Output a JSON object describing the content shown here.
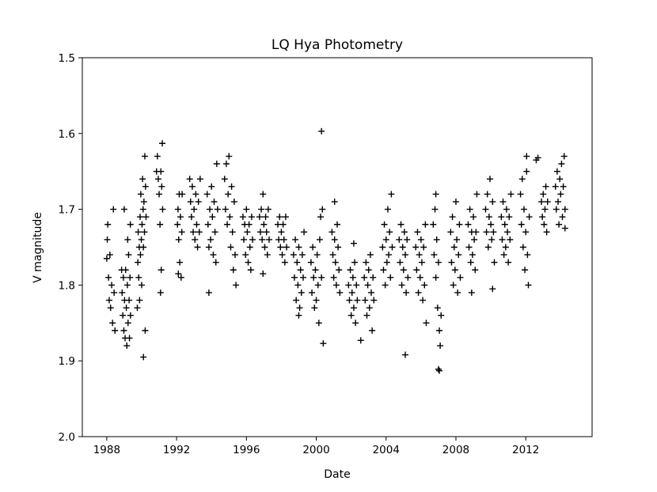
{
  "chart_data": {
    "type": "scatter",
    "title": "LQ Hya Photometry",
    "xlabel": "Date",
    "ylabel": "V magnitude",
    "xlim": [
      1986.6,
      2015.8
    ],
    "ylim": [
      2.0,
      1.5
    ],
    "y_inverted": true,
    "marker": "+",
    "marker_color": "#000000",
    "grid": false,
    "xticks": [
      1988,
      1992,
      1996,
      2000,
      2004,
      2008,
      2012
    ],
    "xtick_labels": [
      "1988",
      "1992",
      "1996",
      "2000",
      "2004",
      "2008",
      "2012"
    ],
    "yticks": [
      1.5,
      1.6,
      1.7,
      1.8,
      1.9,
      2.0
    ],
    "ytick_labels": [
      "1.5",
      "1.6",
      "1.7",
      "1.8",
      "1.9",
      "2.0"
    ],
    "points": [
      [
        1988.0,
        1.765
      ],
      [
        1988.03,
        1.74
      ],
      [
        1988.06,
        1.72
      ],
      [
        1988.1,
        1.79
      ],
      [
        1988.14,
        1.82
      ],
      [
        1988.18,
        1.76
      ],
      [
        1988.22,
        1.83
      ],
      [
        1988.28,
        1.8
      ],
      [
        1988.33,
        1.85
      ],
      [
        1988.38,
        1.7
      ],
      [
        1988.42,
        1.81
      ],
      [
        1988.47,
        1.86
      ],
      [
        1988.85,
        1.78
      ],
      [
        1988.88,
        1.81
      ],
      [
        1988.92,
        1.84
      ],
      [
        1988.95,
        1.79
      ],
      [
        1988.98,
        1.86
      ],
      [
        1989.02,
        1.82
      ],
      [
        1989.05,
        1.87
      ],
      [
        1989.08,
        1.78
      ],
      [
        1989.12,
        1.83
      ],
      [
        1989.15,
        1.88
      ],
      [
        1989.18,
        1.8
      ],
      [
        1989.22,
        1.85
      ],
      [
        1989.25,
        1.76
      ],
      [
        1989.28,
        1.82
      ],
      [
        1989.3,
        1.87
      ],
      [
        1989.33,
        1.79
      ],
      [
        1989.36,
        1.84
      ],
      [
        1989.0,
        1.7
      ],
      [
        1989.2,
        1.74
      ],
      [
        1989.35,
        1.72
      ],
      [
        1989.75,
        1.83
      ],
      [
        1989.78,
        1.77
      ],
      [
        1989.8,
        1.73
      ],
      [
        1989.83,
        1.79
      ],
      [
        1989.86,
        1.75
      ],
      [
        1989.88,
        1.82
      ],
      [
        1989.91,
        1.71
      ],
      [
        1989.93,
        1.76
      ],
      [
        1989.95,
        1.68
      ],
      [
        1989.98,
        1.74
      ],
      [
        1990.0,
        1.8
      ],
      [
        1990.02,
        1.72
      ],
      [
        1990.05,
        1.66
      ],
      [
        1990.08,
        1.7
      ],
      [
        1990.1,
        1.75
      ],
      [
        1990.13,
        1.69
      ],
      [
        1990.16,
        1.73
      ],
      [
        1990.18,
        1.63
      ],
      [
        1990.2,
        1.86
      ],
      [
        1990.1,
        1.895
      ],
      [
        1990.22,
        1.67
      ],
      [
        1990.25,
        1.71
      ],
      [
        1990.85,
        1.65
      ],
      [
        1990.9,
        1.63
      ],
      [
        1990.95,
        1.66
      ],
      [
        1991.0,
        1.68
      ],
      [
        1991.05,
        1.72
      ],
      [
        1991.1,
        1.65
      ],
      [
        1991.15,
        1.67
      ],
      [
        1991.18,
        1.613
      ],
      [
        1991.2,
        1.7
      ],
      [
        1991.12,
        1.78
      ],
      [
        1991.08,
        1.81
      ],
      [
        1992.05,
        1.72
      ],
      [
        1992.08,
        1.7
      ],
      [
        1992.12,
        1.74
      ],
      [
        1992.15,
        1.68
      ],
      [
        1992.18,
        1.77
      ],
      [
        1992.22,
        1.71
      ],
      [
        1992.26,
        1.79
      ],
      [
        1992.3,
        1.73
      ],
      [
        1992.32,
        1.68
      ],
      [
        1992.1,
        1.785
      ],
      [
        1992.75,
        1.66
      ],
      [
        1992.8,
        1.69
      ],
      [
        1992.85,
        1.71
      ],
      [
        1992.9,
        1.67
      ],
      [
        1992.95,
        1.73
      ],
      [
        1993.0,
        1.7
      ],
      [
        1993.05,
        1.74
      ],
      [
        1993.1,
        1.68
      ],
      [
        1993.15,
        1.72
      ],
      [
        1993.2,
        1.75
      ],
      [
        1993.25,
        1.69
      ],
      [
        1993.3,
        1.73
      ],
      [
        1993.35,
        1.66
      ],
      [
        1993.75,
        1.68
      ],
      [
        1993.8,
        1.72
      ],
      [
        1993.85,
        1.75
      ],
      [
        1993.9,
        1.7
      ],
      [
        1993.95,
        1.74
      ],
      [
        1994.0,
        1.67
      ],
      [
        1994.05,
        1.71
      ],
      [
        1994.1,
        1.76
      ],
      [
        1994.15,
        1.69
      ],
      [
        1994.2,
        1.73
      ],
      [
        1994.25,
        1.77
      ],
      [
        1994.3,
        1.64
      ],
      [
        1994.35,
        1.7
      ],
      [
        1993.85,
        1.81
      ],
      [
        1994.75,
        1.66
      ],
      [
        1994.8,
        1.7
      ],
      [
        1994.85,
        1.64
      ],
      [
        1994.9,
        1.72
      ],
      [
        1994.95,
        1.68
      ],
      [
        1995.0,
        1.63
      ],
      [
        1995.05,
        1.71
      ],
      [
        1995.1,
        1.75
      ],
      [
        1995.15,
        1.67
      ],
      [
        1995.2,
        1.73
      ],
      [
        1995.25,
        1.78
      ],
      [
        1995.3,
        1.69
      ],
      [
        1995.35,
        1.76
      ],
      [
        1995.4,
        1.8
      ],
      [
        1995.8,
        1.71
      ],
      [
        1995.85,
        1.74
      ],
      [
        1995.9,
        1.72
      ],
      [
        1995.95,
        1.76
      ],
      [
        1996.0,
        1.7
      ],
      [
        1996.05,
        1.73
      ],
      [
        1996.1,
        1.77
      ],
      [
        1996.15,
        1.72
      ],
      [
        1996.2,
        1.75
      ],
      [
        1996.25,
        1.78
      ],
      [
        1996.3,
        1.71
      ],
      [
        1996.35,
        1.74
      ],
      [
        1996.75,
        1.71
      ],
      [
        1996.8,
        1.73
      ],
      [
        1996.85,
        1.7
      ],
      [
        1996.9,
        1.74
      ],
      [
        1996.95,
        1.68
      ],
      [
        1997.0,
        1.72
      ],
      [
        1997.05,
        1.75
      ],
      [
        1997.1,
        1.71
      ],
      [
        1997.15,
        1.73
      ],
      [
        1997.2,
        1.76
      ],
      [
        1997.25,
        1.7
      ],
      [
        1997.3,
        1.74
      ],
      [
        1996.95,
        1.785
      ],
      [
        1997.8,
        1.72
      ],
      [
        1997.85,
        1.74
      ],
      [
        1997.9,
        1.71
      ],
      [
        1997.95,
        1.75
      ],
      [
        1998.0,
        1.73
      ],
      [
        1998.05,
        1.76
      ],
      [
        1998.1,
        1.72
      ],
      [
        1998.15,
        1.74
      ],
      [
        1998.2,
        1.77
      ],
      [
        1998.25,
        1.71
      ],
      [
        1998.3,
        1.75
      ],
      [
        1998.7,
        1.76
      ],
      [
        1998.75,
        1.79
      ],
      [
        1998.8,
        1.74
      ],
      [
        1998.85,
        1.82
      ],
      [
        1998.9,
        1.77
      ],
      [
        1998.95,
        1.8
      ],
      [
        1999.0,
        1.75
      ],
      [
        1999.05,
        1.83
      ],
      [
        1999.1,
        1.78
      ],
      [
        1999.15,
        1.81
      ],
      [
        1999.2,
        1.76
      ],
      [
        1999.25,
        1.79
      ],
      [
        1999.3,
        1.73
      ],
      [
        1999.0,
        1.84
      ],
      [
        1999.7,
        1.77
      ],
      [
        1999.75,
        1.81
      ],
      [
        1999.8,
        1.75
      ],
      [
        1999.85,
        1.79
      ],
      [
        1999.9,
        1.83
      ],
      [
        1999.95,
        1.78
      ],
      [
        2000.0,
        1.82
      ],
      [
        2000.05,
        1.76
      ],
      [
        2000.1,
        1.8
      ],
      [
        2000.15,
        1.85
      ],
      [
        2000.2,
        1.74
      ],
      [
        2000.25,
        1.71
      ],
      [
        2000.3,
        1.79
      ],
      [
        2000.35,
        1.7
      ],
      [
        2000.3,
        1.597
      ],
      [
        2000.4,
        1.877
      ],
      [
        2000.9,
        1.73
      ],
      [
        2000.95,
        1.76
      ],
      [
        2001.0,
        1.79
      ],
      [
        2001.05,
        1.74
      ],
      [
        2001.1,
        1.77
      ],
      [
        2001.15,
        1.8
      ],
      [
        2001.2,
        1.72
      ],
      [
        2001.25,
        1.75
      ],
      [
        2001.3,
        1.78
      ],
      [
        2001.35,
        1.81
      ],
      [
        2001.05,
        1.69
      ],
      [
        2001.85,
        1.8
      ],
      [
        2001.9,
        1.82
      ],
      [
        2001.95,
        1.78
      ],
      [
        2002.0,
        1.84
      ],
      [
        2002.05,
        1.81
      ],
      [
        2002.1,
        1.79
      ],
      [
        2002.15,
        1.83
      ],
      [
        2002.2,
        1.77
      ],
      [
        2002.25,
        1.85
      ],
      [
        2002.3,
        1.8
      ],
      [
        2002.35,
        1.82
      ],
      [
        2002.15,
        1.745
      ],
      [
        2002.75,
        1.79
      ],
      [
        2002.8,
        1.82
      ],
      [
        2002.85,
        1.77
      ],
      [
        2002.9,
        1.84
      ],
      [
        2002.95,
        1.8
      ],
      [
        2003.0,
        1.78
      ],
      [
        2003.05,
        1.83
      ],
      [
        2003.1,
        1.76
      ],
      [
        2003.15,
        1.81
      ],
      [
        2003.2,
        1.86
      ],
      [
        2003.25,
        1.79
      ],
      [
        2003.3,
        1.82
      ],
      [
        2002.55,
        1.873
      ],
      [
        2003.8,
        1.75
      ],
      [
        2003.85,
        1.78
      ],
      [
        2003.9,
        1.72
      ],
      [
        2003.95,
        1.8
      ],
      [
        2004.0,
        1.74
      ],
      [
        2004.05,
        1.77
      ],
      [
        2004.1,
        1.7
      ],
      [
        2004.15,
        1.76
      ],
      [
        2004.2,
        1.73
      ],
      [
        2004.25,
        1.79
      ],
      [
        2004.3,
        1.68
      ],
      [
        2004.35,
        1.75
      ],
      [
        2004.75,
        1.74
      ],
      [
        2004.8,
        1.77
      ],
      [
        2004.85,
        1.72
      ],
      [
        2004.9,
        1.8
      ],
      [
        2004.95,
        1.75
      ],
      [
        2005.0,
        1.78
      ],
      [
        2005.05,
        1.73
      ],
      [
        2005.1,
        1.76
      ],
      [
        2005.15,
        1.81
      ],
      [
        2005.2,
        1.74
      ],
      [
        2005.25,
        1.79
      ],
      [
        2005.1,
        1.892
      ],
      [
        2005.7,
        1.75
      ],
      [
        2005.75,
        1.78
      ],
      [
        2005.8,
        1.73
      ],
      [
        2005.85,
        1.81
      ],
      [
        2005.9,
        1.76
      ],
      [
        2005.95,
        1.79
      ],
      [
        2006.0,
        1.74
      ],
      [
        2006.05,
        1.77
      ],
      [
        2006.1,
        1.82
      ],
      [
        2006.15,
        1.75
      ],
      [
        2006.2,
        1.8
      ],
      [
        2006.25,
        1.72
      ],
      [
        2006.3,
        1.85
      ],
      [
        2006.7,
        1.72
      ],
      [
        2006.75,
        1.76
      ],
      [
        2006.8,
        1.7
      ],
      [
        2006.85,
        1.79
      ],
      [
        2006.9,
        1.74
      ],
      [
        2006.95,
        1.83
      ],
      [
        2007.0,
        1.77
      ],
      [
        2007.05,
        1.86
      ],
      [
        2007.1,
        1.88
      ],
      [
        2007.15,
        1.84
      ],
      [
        2007.05,
        1.913
      ],
      [
        2007.0,
        1.911
      ],
      [
        2006.85,
        1.68
      ],
      [
        2007.7,
        1.73
      ],
      [
        2007.75,
        1.77
      ],
      [
        2007.8,
        1.71
      ],
      [
        2007.85,
        1.8
      ],
      [
        2007.9,
        1.75
      ],
      [
        2007.95,
        1.78
      ],
      [
        2008.0,
        1.69
      ],
      [
        2008.05,
        1.74
      ],
      [
        2008.1,
        1.81
      ],
      [
        2008.15,
        1.76
      ],
      [
        2008.2,
        1.72
      ],
      [
        2008.25,
        1.79
      ],
      [
        2008.7,
        1.72
      ],
      [
        2008.75,
        1.75
      ],
      [
        2008.8,
        1.7
      ],
      [
        2008.85,
        1.77
      ],
      [
        2008.9,
        1.73
      ],
      [
        2008.95,
        1.76
      ],
      [
        2009.0,
        1.71
      ],
      [
        2009.05,
        1.74
      ],
      [
        2009.1,
        1.78
      ],
      [
        2009.15,
        1.73
      ],
      [
        2009.2,
        1.68
      ],
      [
        2008.9,
        1.81
      ],
      [
        2009.7,
        1.7
      ],
      [
        2009.75,
        1.73
      ],
      [
        2009.8,
        1.68
      ],
      [
        2009.85,
        1.75
      ],
      [
        2009.9,
        1.71
      ],
      [
        2009.95,
        1.66
      ],
      [
        2010.0,
        1.72
      ],
      [
        2010.05,
        1.74
      ],
      [
        2010.1,
        1.69
      ],
      [
        2010.15,
        1.73
      ],
      [
        2010.2,
        1.77
      ],
      [
        2010.1,
        1.805
      ],
      [
        2010.6,
        1.71
      ],
      [
        2010.65,
        1.74
      ],
      [
        2010.7,
        1.69
      ],
      [
        2010.75,
        1.76
      ],
      [
        2010.8,
        1.72
      ],
      [
        2010.85,
        1.75
      ],
      [
        2010.9,
        1.7
      ],
      [
        2010.95,
        1.73
      ],
      [
        2011.0,
        1.77
      ],
      [
        2011.05,
        1.71
      ],
      [
        2011.1,
        1.74
      ],
      [
        2011.15,
        1.68
      ],
      [
        2011.7,
        1.68
      ],
      [
        2011.75,
        1.72
      ],
      [
        2011.8,
        1.66
      ],
      [
        2011.85,
        1.75
      ],
      [
        2011.9,
        1.7
      ],
      [
        2011.95,
        1.78
      ],
      [
        2012.0,
        1.73
      ],
      [
        2012.05,
        1.65
      ],
      [
        2012.1,
        1.76
      ],
      [
        2012.15,
        1.8
      ],
      [
        2012.2,
        1.71
      ],
      [
        2012.05,
        1.63
      ],
      [
        2012.6,
        1.635
      ],
      [
        2012.7,
        1.632
      ],
      [
        2012.9,
        1.69
      ],
      [
        2012.95,
        1.71
      ],
      [
        2013.0,
        1.68
      ],
      [
        2013.05,
        1.72
      ],
      [
        2013.1,
        1.7
      ],
      [
        2013.15,
        1.67
      ],
      [
        2013.2,
        1.73
      ],
      [
        2013.25,
        1.69
      ],
      [
        2013.7,
        1.67
      ],
      [
        2013.75,
        1.7
      ],
      [
        2013.8,
        1.65
      ],
      [
        2013.85,
        1.69
      ],
      [
        2013.9,
        1.72
      ],
      [
        2013.95,
        1.66
      ],
      [
        2014.0,
        1.68
      ],
      [
        2014.05,
        1.64
      ],
      [
        2014.1,
        1.71
      ],
      [
        2014.15,
        1.67
      ],
      [
        2014.2,
        1.63
      ],
      [
        2014.25,
        1.7
      ],
      [
        2014.25,
        1.725
      ]
    ]
  }
}
